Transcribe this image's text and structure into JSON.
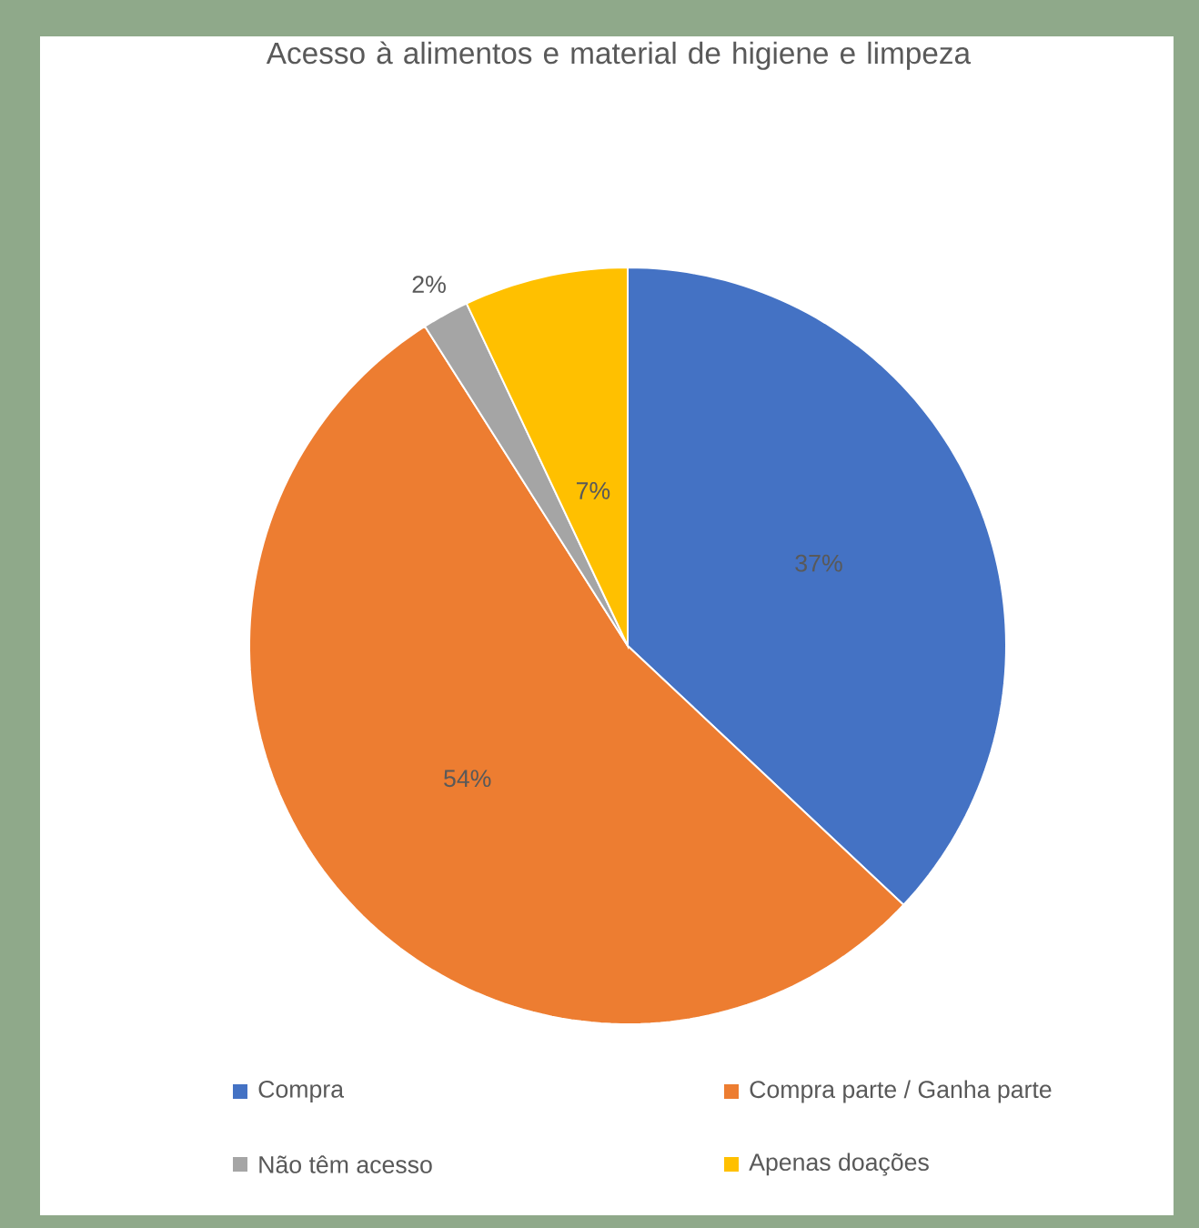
{
  "chart_data": {
    "type": "pie",
    "title": "Acesso à alimentos e material de higiene e limpeza",
    "categories": [
      "Compra",
      "Compra parte / Ganha parte",
      "Não têm acesso",
      "Apenas doações"
    ],
    "values": [
      37,
      54,
      2,
      7
    ],
    "colors": [
      "#4472c4",
      "#ed7d31",
      "#a5a5a5",
      "#ffc000"
    ],
    "value_labels": [
      "37%",
      "54%",
      "2%",
      "7%"
    ],
    "legend": "bottom"
  }
}
